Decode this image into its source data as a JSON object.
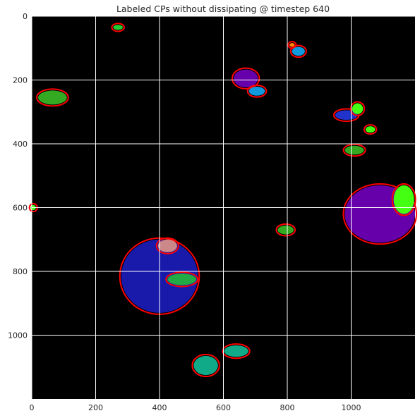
{
  "chart_data": {
    "type": "heatmap",
    "title": "Labeled CPs without dissipating @ timestep 640",
    "xlabel": "",
    "ylabel": "",
    "xlim": [
      0,
      1200
    ],
    "ylim": [
      1200,
      0
    ],
    "x_ticks": [
      "0",
      "200",
      "400",
      "600",
      "800",
      "1000"
    ],
    "y_ticks": [
      "0",
      "200",
      "400",
      "600",
      "800",
      "1000"
    ],
    "x_tick_values": [
      0,
      200,
      400,
      600,
      800,
      1000
    ],
    "y_tick_values": [
      0,
      200,
      400,
      600,
      800,
      1000
    ],
    "grid": true,
    "background_color": "#000000",
    "boundary_color": "#ff0000",
    "regions": [
      {
        "label": "cp-small-top-left",
        "color": "#22cc33",
        "cx": 270,
        "cy": 35,
        "rx": 15,
        "ry": 8
      },
      {
        "label": "cp-orange-top",
        "color": "#ff8800",
        "cx": 815,
        "cy": 90,
        "rx": 8,
        "ry": 6
      },
      {
        "label": "cp-cyan-top",
        "color": "#1199dd",
        "cx": 835,
        "cy": 110,
        "rx": 20,
        "ry": 14
      },
      {
        "label": "cp-purple-center-top",
        "color": "#6600aa",
        "cx": 670,
        "cy": 195,
        "rx": 38,
        "ry": 28
      },
      {
        "label": "cp-cyan-center-top",
        "color": "#1199dd",
        "cx": 705,
        "cy": 235,
        "rx": 25,
        "ry": 14
      },
      {
        "label": "cp-green-left",
        "color": "#33aa22",
        "cx": 65,
        "cy": 255,
        "rx": 45,
        "ry": 22
      },
      {
        "label": "cp-blue-right",
        "color": "#2233cc",
        "cx": 985,
        "cy": 310,
        "rx": 35,
        "ry": 15
      },
      {
        "label": "cp-lime-right",
        "color": "#44ff11",
        "cx": 1020,
        "cy": 290,
        "rx": 17,
        "ry": 17
      },
      {
        "label": "cp-lime-right-2",
        "color": "#44ff11",
        "cx": 1060,
        "cy": 355,
        "rx": 15,
        "ry": 10
      },
      {
        "label": "cp-green-right",
        "color": "#33aa22",
        "cx": 1010,
        "cy": 420,
        "rx": 30,
        "ry": 14
      },
      {
        "label": "cp-purple-right",
        "color": "#6600aa",
        "cx": 1090,
        "cy": 620,
        "rx": 110,
        "ry": 90
      },
      {
        "label": "cp-lime-far-right",
        "color": "#44ff11",
        "cx": 1165,
        "cy": 575,
        "rx": 32,
        "ry": 45
      },
      {
        "label": "cp-green-mid",
        "color": "#33aa22",
        "cx": 795,
        "cy": 670,
        "rx": 25,
        "ry": 14
      },
      {
        "label": "cp-blue-large",
        "color": "#1a1aaa",
        "cx": 400,
        "cy": 815,
        "rx": 120,
        "ry": 115
      },
      {
        "label": "cp-green-large",
        "color": "#22aa44",
        "cx": 470,
        "cy": 825,
        "rx": 45,
        "ry": 18
      },
      {
        "label": "cp-pink-large",
        "color": "#cc8888",
        "cx": 425,
        "cy": 720,
        "rx": 30,
        "ry": 20
      },
      {
        "label": "cp-teal-bottom",
        "color": "#11aa88",
        "cx": 545,
        "cy": 1095,
        "rx": 38,
        "ry": 30
      },
      {
        "label": "cp-teal-bottom-2",
        "color": "#11aa88",
        "cx": 640,
        "cy": 1050,
        "rx": 38,
        "ry": 18
      },
      {
        "label": "cp-lime-left-edge",
        "color": "#44ff11",
        "cx": 5,
        "cy": 600,
        "rx": 8,
        "ry": 8
      }
    ]
  }
}
